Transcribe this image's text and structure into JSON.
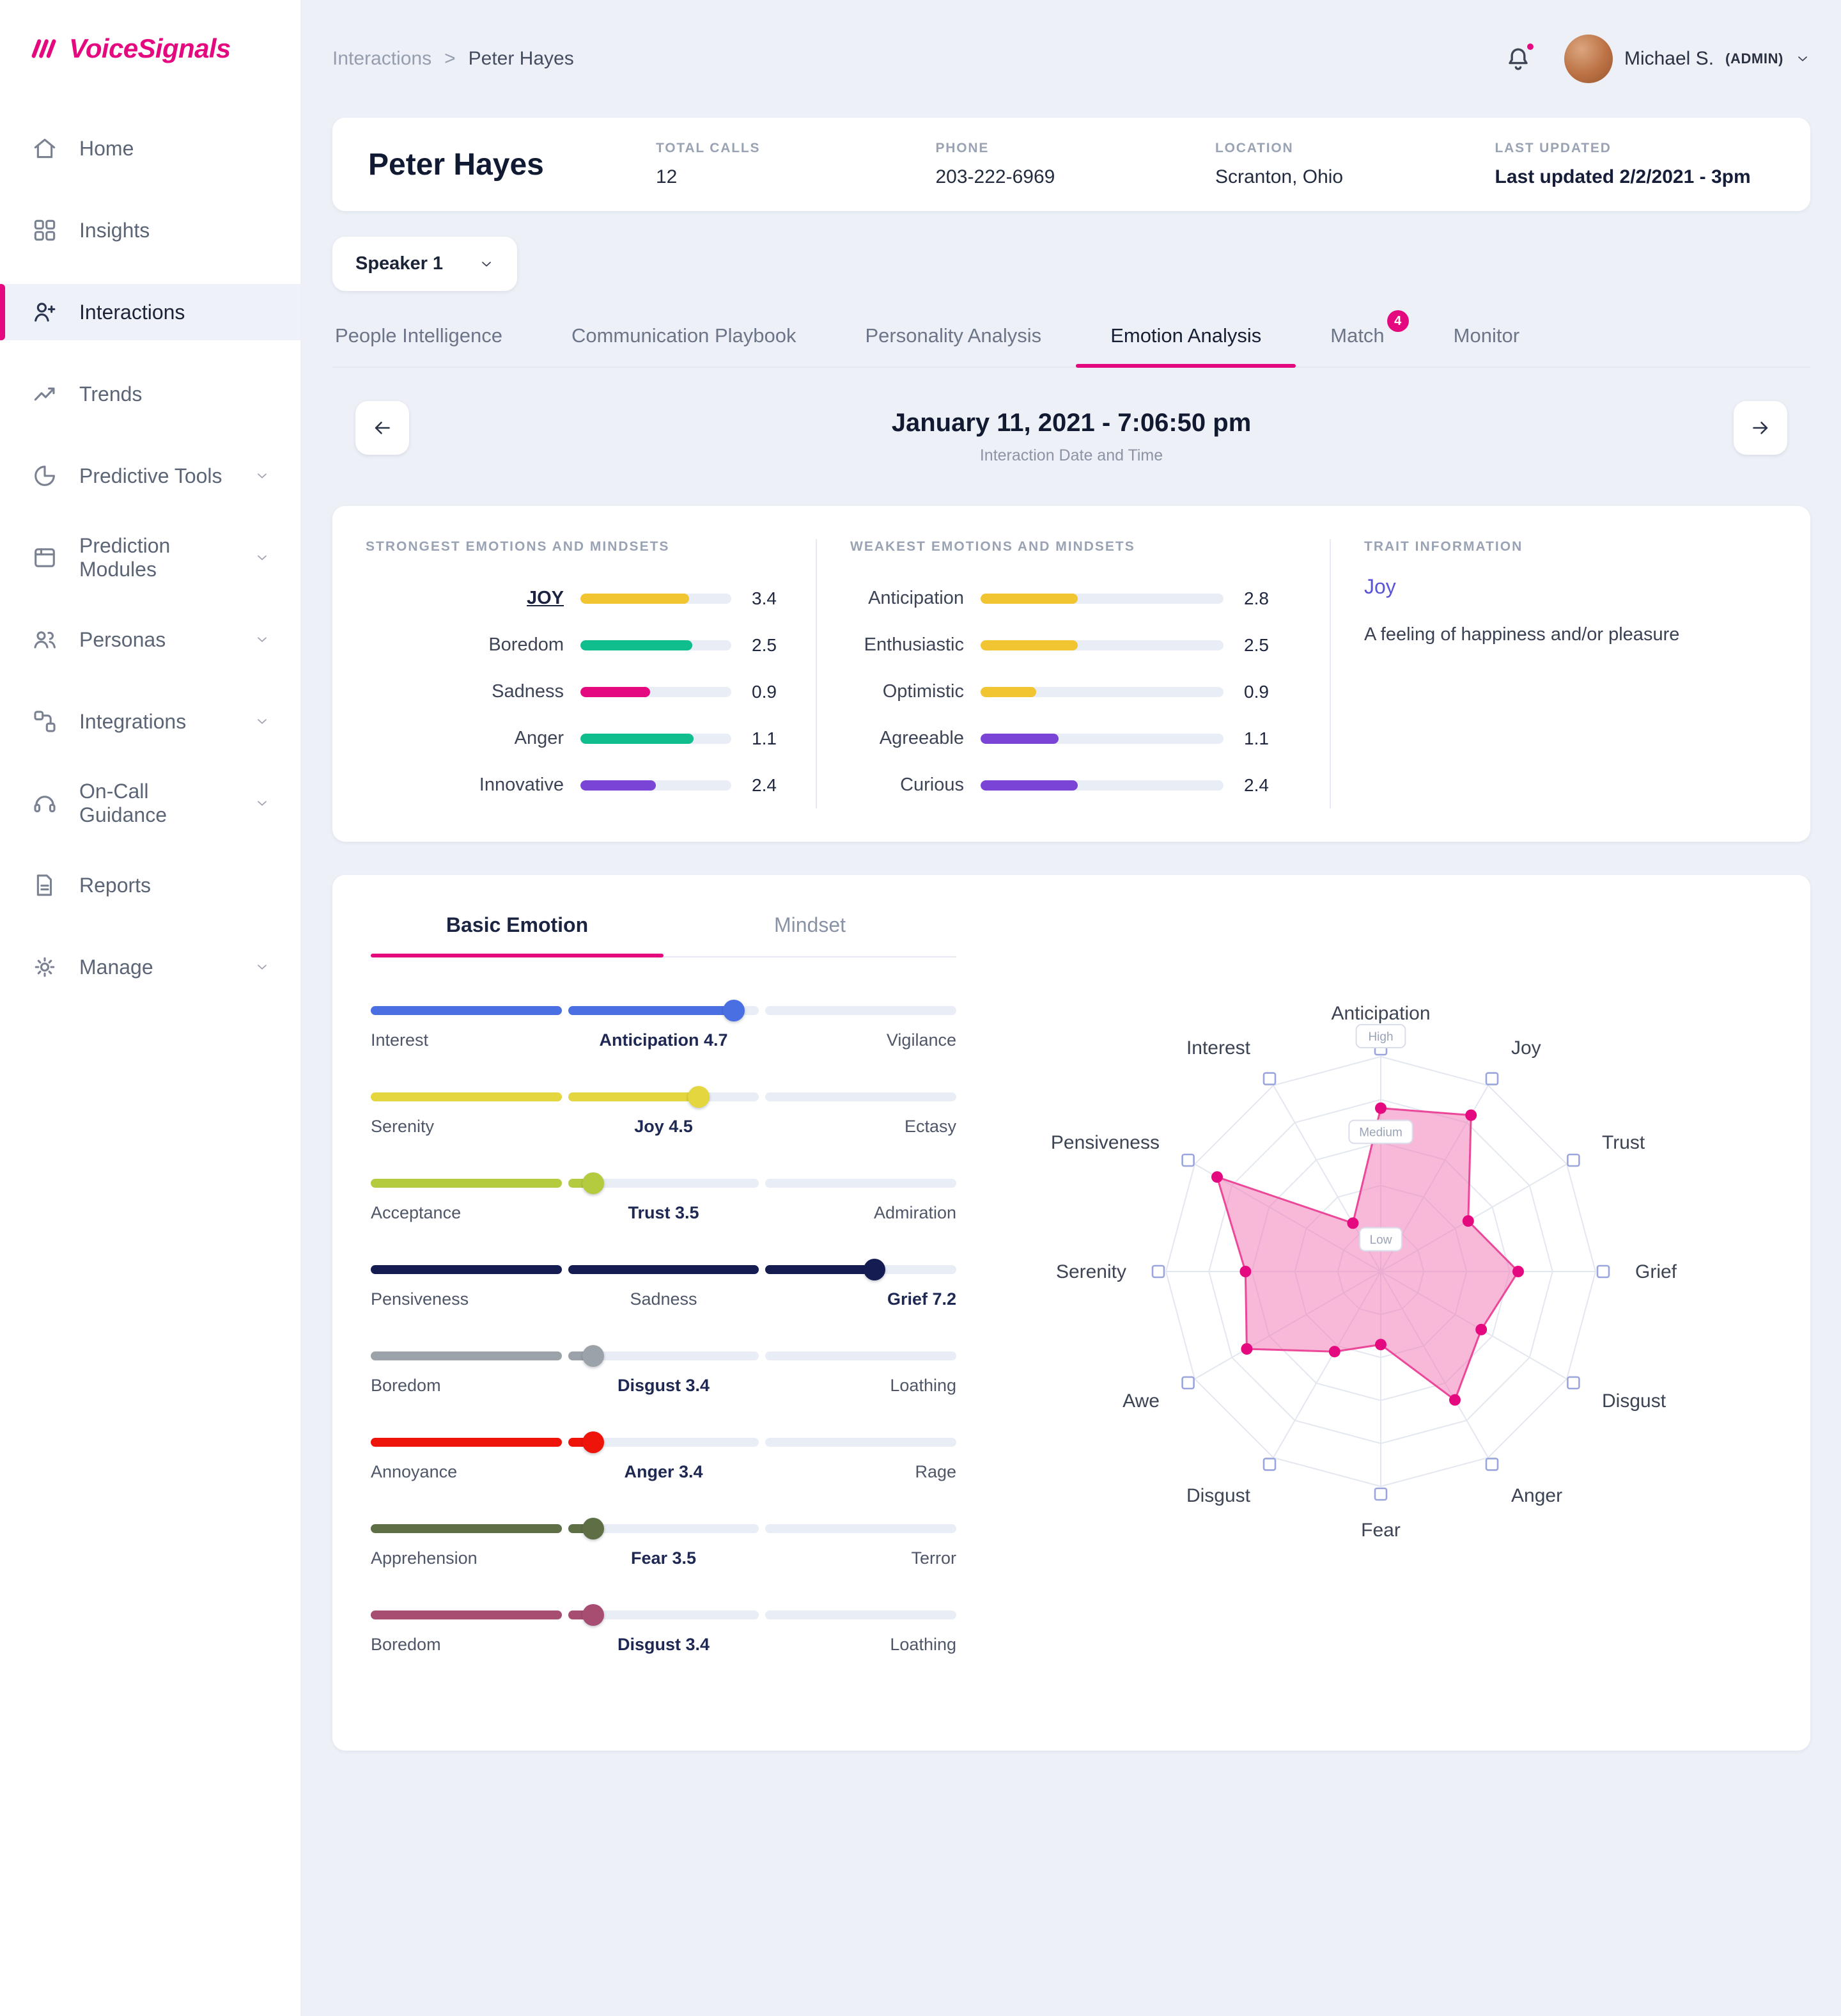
{
  "brand": {
    "name": "VoiceSignals"
  },
  "colors": {
    "accent_pink": "#e5097f",
    "background": "#edf0f7",
    "trait_link": "#5a55d6"
  },
  "sidebar": {
    "items": [
      {
        "label": "Home",
        "icon": "home"
      },
      {
        "label": "Insights",
        "icon": "insights"
      },
      {
        "label": "Interactions",
        "icon": "interactions",
        "active": true
      },
      {
        "label": "Trends",
        "icon": "trends"
      },
      {
        "label": "Predictive Tools",
        "icon": "predictive-tools",
        "chevron": true
      },
      {
        "label": "Prediction Modules",
        "icon": "prediction-modules",
        "chevron": true
      },
      {
        "label": "Personas",
        "icon": "personas",
        "chevron": true
      },
      {
        "label": "Integrations",
        "icon": "integrations",
        "chevron": true
      },
      {
        "label": "On-Call Guidance",
        "icon": "on-call-guidance",
        "chevron": true
      },
      {
        "label": "Reports",
        "icon": "reports"
      },
      {
        "label": "Manage",
        "icon": "manage",
        "chevron": true
      }
    ]
  },
  "header": {
    "breadcrumb": {
      "parent": "Interactions",
      "separator": ">",
      "current": "Peter Hayes"
    },
    "user": {
      "name": "Michael S.",
      "role": "(ADMIN)"
    }
  },
  "contact": {
    "name": "Peter Hayes",
    "fields": [
      {
        "label": "TOTAL CALLS",
        "value": "12"
      },
      {
        "label": "PHONE",
        "value": "203-222-6969"
      },
      {
        "label": "LOCATION",
        "value": "Scranton, Ohio"
      },
      {
        "label": "LAST UPDATED",
        "value": "Last updated 2/2/2021 - 3pm",
        "bold": true
      }
    ]
  },
  "speaker": {
    "selected": "Speaker 1"
  },
  "tabs": [
    {
      "label": "People Intelligence"
    },
    {
      "label": "Communication Playbook"
    },
    {
      "label": "Personality Analysis"
    },
    {
      "label": "Emotion Analysis",
      "active": true
    },
    {
      "label": "Match",
      "badge": "4"
    },
    {
      "label": "Monitor"
    }
  ],
  "date_nav": {
    "title": "January 11, 2021 - 7:06:50 pm",
    "subtitle": "Interaction Date and Time"
  },
  "summary": {
    "strongest": {
      "heading": "STRONGEST EMOTIONS AND MINDSETS",
      "rows": [
        {
          "label": "JOY",
          "value": "3.4",
          "pct": 72,
          "color": "#f1c431",
          "emph": true
        },
        {
          "label": "Boredom",
          "value": "2.5",
          "pct": 74,
          "color": "#10bd8d"
        },
        {
          "label": "Sadness",
          "value": "0.9",
          "pct": 46,
          "color": "#e5097f"
        },
        {
          "label": "Anger",
          "value": "1.1",
          "pct": 75,
          "color": "#10bd8d"
        },
        {
          "label": "Innovative",
          "value": "2.4",
          "pct": 50,
          "color": "#7a45d6"
        }
      ]
    },
    "weakest": {
      "heading": "WEAKEST EMOTIONS AND MINDSETS",
      "rows": [
        {
          "label": "Anticipation",
          "value": "2.8",
          "pct": 40,
          "color": "#f1c431"
        },
        {
          "label": "Enthusiastic",
          "value": "2.5",
          "pct": 40,
          "color": "#f1c431"
        },
        {
          "label": "Optimistic",
          "value": "0.9",
          "pct": 23,
          "color": "#f1c431"
        },
        {
          "label": "Agreeable",
          "value": "1.1",
          "pct": 32,
          "color": "#7a45d6"
        },
        {
          "label": "Curious",
          "value": "2.4",
          "pct": 40,
          "color": "#7a45d6"
        }
      ]
    },
    "trait": {
      "heading": "TRAIT INFORMATION",
      "name": "Joy",
      "description": "A feeling of happiness and/or pleasure"
    }
  },
  "emotion": {
    "tabs": [
      {
        "label": "Basic Emotion",
        "active": true
      },
      {
        "label": "Mindset"
      }
    ],
    "sliders": [
      {
        "left": "Interest",
        "center": "Anticipation 4.7",
        "right": "Vigilance",
        "bold": "center",
        "color": "#4a6fe3",
        "pct": 62
      },
      {
        "left": "Serenity",
        "center": "Joy 4.5",
        "right": "Ectasy",
        "bold": "center",
        "color": "#e4d63e",
        "pct": 56
      },
      {
        "left": "Acceptance",
        "center": "Trust 3.5",
        "right": "Admiration",
        "bold": "center",
        "color": "#b5cb3f",
        "pct": 38
      },
      {
        "left": "Pensiveness",
        "center": "Sadness",
        "right": "Grief 7.2",
        "bold": "right",
        "color": "#141c51",
        "pct": 86
      },
      {
        "left": "Boredom",
        "center": "Disgust 3.4",
        "right": "Loathing",
        "bold": "center",
        "color": "#9ba2a9",
        "pct": 38
      },
      {
        "left": "Annoyance",
        "center": "Anger 3.4",
        "right": "Rage",
        "bold": "center",
        "color": "#ee140a",
        "pct": 38
      },
      {
        "left": "Apprehension",
        "center": "Fear 3.5",
        "right": "Terror",
        "bold": "center",
        "color": "#5e6e45",
        "pct": 38
      },
      {
        "left": "Boredom",
        "center": "Disgust 3.4",
        "right": "Loathing",
        "bold": "center",
        "color": "#a74d72",
        "pct": 38
      }
    ],
    "chart_data": {
      "type": "radar",
      "axes": [
        "Anticipation",
        "Joy",
        "Trust",
        "Grief",
        "Disgust",
        "Anger",
        "Fear",
        "Disgust",
        "Awe",
        "Serenity",
        "Pensiveness",
        "Interest"
      ],
      "values": [
        7.6,
        8.4,
        4.7,
        6.4,
        5.4,
        6.9,
        3.4,
        4.3,
        7.2,
        6.3,
        8.8,
        2.6
      ],
      "max": 10,
      "ring_labels": [
        "High",
        "Medium",
        "Low"
      ],
      "fill_color": "#f37fba",
      "stroke_color": "#ec4899",
      "dot_color": "#e5097f"
    }
  }
}
